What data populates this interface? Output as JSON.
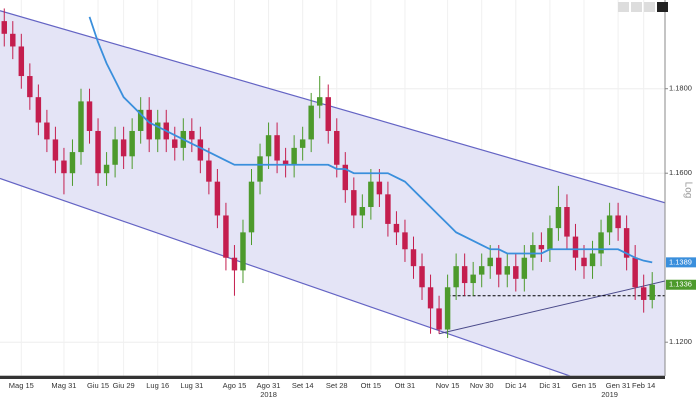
{
  "chart_data": {
    "type": "candlestick",
    "scale_label": "Log",
    "grid": true,
    "categories": [
      null,
      null,
      "Mag 15",
      null,
      null,
      null,
      null,
      "Mag 31",
      null,
      null,
      null,
      "Giu 15",
      null,
      null,
      "Giu 29",
      null,
      null,
      null,
      "Lug 16",
      null,
      null,
      null,
      "Lug 31",
      null,
      null,
      null,
      null,
      "Ago 15",
      null,
      null,
      null,
      "Ago 31",
      null,
      null,
      null,
      "Set 14",
      null,
      null,
      null,
      "Set 28",
      null,
      null,
      null,
      "Ott 15",
      null,
      null,
      null,
      "Ott 31",
      null,
      null,
      null,
      null,
      "Nov 15",
      null,
      null,
      null,
      "Nov 30",
      null,
      null,
      null,
      "Dic 14",
      null,
      null,
      null,
      "Dic 31",
      null,
      null,
      null,
      "Gen 15",
      null,
      null,
      null,
      "Gen 31",
      null,
      null,
      "Feb 14",
      null
    ],
    "year_categories": [
      null,
      null,
      null,
      null,
      null,
      null,
      null,
      null,
      null,
      null,
      null,
      null,
      null,
      null,
      null,
      null,
      null,
      null,
      null,
      null,
      null,
      null,
      null,
      null,
      null,
      null,
      null,
      null,
      null,
      null,
      null,
      "2018",
      null,
      null,
      null,
      null,
      null,
      null,
      null,
      null,
      null,
      null,
      null,
      null,
      null,
      null,
      null,
      null,
      null,
      null,
      null,
      null,
      null,
      null,
      null,
      null,
      null,
      null,
      null,
      null,
      null,
      null,
      null,
      null,
      null,
      null,
      null,
      null,
      null,
      null,
      null,
      "2019",
      null,
      null,
      null,
      null,
      null
    ],
    "open": [
      1.196,
      1.193,
      1.19,
      1.183,
      1.178,
      1.172,
      1.168,
      1.163,
      1.16,
      1.165,
      1.177,
      1.17,
      1.16,
      1.162,
      1.168,
      1.164,
      1.17,
      1.175,
      1.168,
      1.172,
      1.168,
      1.166,
      1.17,
      1.168,
      1.163,
      1.158,
      1.15,
      1.14,
      1.137,
      1.146,
      1.158,
      1.164,
      1.169,
      1.163,
      1.162,
      1.166,
      1.168,
      1.176,
      1.178,
      1.17,
      1.162,
      1.156,
      1.15,
      1.152,
      1.158,
      1.155,
      1.148,
      1.146,
      1.142,
      1.138,
      1.133,
      1.128,
      1.123,
      1.133,
      1.138,
      1.134,
      1.136,
      1.138,
      1.14,
      1.136,
      1.138,
      1.135,
      1.14,
      1.143,
      1.142,
      1.147,
      1.152,
      1.145,
      1.14,
      1.138,
      1.141,
      1.146,
      1.15,
      1.147,
      1.14,
      1.133,
      1.13
    ],
    "high": [
      1.199,
      1.196,
      1.193,
      1.186,
      1.181,
      1.175,
      1.171,
      1.166,
      1.168,
      1.18,
      1.18,
      1.173,
      1.165,
      1.171,
      1.171,
      1.173,
      1.178,
      1.178,
      1.175,
      1.175,
      1.171,
      1.173,
      1.173,
      1.171,
      1.166,
      1.161,
      1.153,
      1.143,
      1.149,
      1.161,
      1.167,
      1.172,
      1.172,
      1.166,
      1.169,
      1.171,
      1.179,
      1.183,
      1.181,
      1.173,
      1.165,
      1.159,
      1.155,
      1.161,
      1.161,
      1.158,
      1.151,
      1.149,
      1.145,
      1.141,
      1.136,
      1.131,
      1.136,
      1.141,
      1.141,
      1.139,
      1.141,
      1.143,
      1.143,
      1.141,
      1.141,
      1.143,
      1.146,
      1.146,
      1.15,
      1.157,
      1.155,
      1.148,
      1.143,
      1.144,
      1.149,
      1.153,
      1.153,
      1.15,
      1.143,
      1.136,
      1.1366
    ],
    "low": [
      1.19,
      1.187,
      1.18,
      1.175,
      1.169,
      1.165,
      1.16,
      1.155,
      1.157,
      1.162,
      1.167,
      1.157,
      1.157,
      1.159,
      1.161,
      1.161,
      1.167,
      1.165,
      1.165,
      1.165,
      1.163,
      1.163,
      1.165,
      1.16,
      1.155,
      1.147,
      1.137,
      1.131,
      1.134,
      1.143,
      1.155,
      1.161,
      1.16,
      1.159,
      1.159,
      1.163,
      1.165,
      1.173,
      1.167,
      1.159,
      1.153,
      1.147,
      1.147,
      1.149,
      1.152,
      1.145,
      1.143,
      1.139,
      1.135,
      1.13,
      1.122,
      1.122,
      1.121,
      1.13,
      1.131,
      1.131,
      1.133,
      1.135,
      1.133,
      1.133,
      1.132,
      1.132,
      1.137,
      1.139,
      1.139,
      1.144,
      1.142,
      1.137,
      1.135,
      1.135,
      1.138,
      1.143,
      1.144,
      1.137,
      1.13,
      1.127,
      1.128
    ],
    "close": [
      1.193,
      1.19,
      1.183,
      1.178,
      1.172,
      1.168,
      1.163,
      1.16,
      1.165,
      1.177,
      1.17,
      1.16,
      1.162,
      1.168,
      1.164,
      1.17,
      1.175,
      1.168,
      1.172,
      1.168,
      1.166,
      1.17,
      1.168,
      1.163,
      1.158,
      1.15,
      1.14,
      1.137,
      1.146,
      1.158,
      1.164,
      1.169,
      1.163,
      1.162,
      1.166,
      1.168,
      1.176,
      1.178,
      1.17,
      1.162,
      1.156,
      1.15,
      1.152,
      1.158,
      1.155,
      1.148,
      1.146,
      1.142,
      1.138,
      1.133,
      1.128,
      1.123,
      1.133,
      1.138,
      1.134,
      1.136,
      1.138,
      1.14,
      1.136,
      1.138,
      1.135,
      1.14,
      1.143,
      1.142,
      1.147,
      1.152,
      1.145,
      1.14,
      1.138,
      1.141,
      1.146,
      1.15,
      1.147,
      1.14,
      1.133,
      1.13,
      1.1336
    ],
    "up_color": "#4d9a2c",
    "down_color": "#c41e4e",
    "moving_average": {
      "color": "#3a8fdc",
      "values": [
        null,
        null,
        null,
        null,
        null,
        null,
        null,
        null,
        null,
        null,
        1.197,
        1.191,
        1.186,
        1.182,
        1.178,
        1.176,
        1.174,
        1.172,
        1.171,
        1.17,
        1.169,
        1.168,
        1.167,
        1.166,
        1.165,
        1.164,
        1.163,
        1.162,
        1.162,
        1.162,
        1.162,
        1.162,
        1.162,
        1.162,
        1.162,
        1.162,
        1.162,
        1.162,
        1.162,
        1.161,
        1.161,
        1.16,
        1.16,
        1.16,
        1.16,
        1.16,
        1.159,
        1.158,
        1.156,
        1.154,
        1.152,
        1.15,
        1.148,
        1.146,
        1.145,
        1.144,
        1.143,
        1.142,
        1.142,
        1.141,
        1.141,
        1.141,
        1.141,
        1.141,
        1.142,
        1.142,
        1.142,
        1.142,
        1.142,
        1.142,
        1.142,
        1.142,
        1.142,
        1.141,
        1.14,
        1.1393,
        1.1389
      ]
    },
    "channel": {
      "color": "#6464c4",
      "fill": "#e4e4f6",
      "upper": {
        "x": [
          2,
          77.5
        ],
        "y": [
          1.197,
          1.153
        ]
      },
      "lower": {
        "x": [
          2,
          63.5
        ],
        "y": [
          1.157,
          1.114
        ]
      }
    },
    "trendline": {
      "color": "#4a4a8a",
      "x": [
        51,
        77.5
      ],
      "y": [
        1.122,
        1.1345
      ]
    },
    "support": {
      "color": "#000000",
      "x": [
        52,
        77.5
      ],
      "y": [
        1.131,
        1.131
      ]
    },
    "ylim": [
      1.112,
      1.201
    ],
    "yticks": [
      {
        "value": 1.12,
        "label": "1.1200"
      },
      {
        "value": 1.16,
        "label": "1.1600"
      },
      {
        "value": 1.18,
        "label": "1.1800"
      }
    ]
  }
}
